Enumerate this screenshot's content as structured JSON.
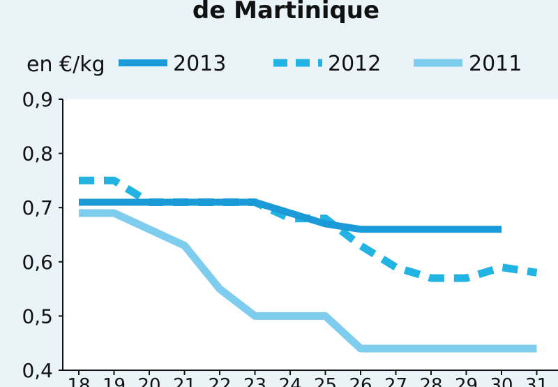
{
  "chart_data": {
    "type": "line",
    "title": "de Martinique",
    "unit_label": "en €/kg",
    "x": [
      "18",
      "19",
      "20",
      "21",
      "22",
      "23",
      "24",
      "25",
      "26",
      "27",
      "28",
      "29",
      "30",
      "31"
    ],
    "ylim": [
      0.4,
      0.9
    ],
    "yticks": [
      "0,4",
      "0,5",
      "0,6",
      "0,7",
      "0,8",
      "0,9"
    ],
    "legend_position": "top",
    "grid": false,
    "series": [
      {
        "name": "2013",
        "style": "solid",
        "color": "#1a9ad6",
        "values": [
          0.71,
          0.71,
          0.71,
          0.71,
          0.71,
          0.71,
          0.69,
          0.67,
          0.66,
          0.66,
          0.66,
          0.66,
          0.66,
          null
        ]
      },
      {
        "name": "2012",
        "style": "dashed",
        "color": "#22b3e3",
        "values": [
          0.75,
          0.75,
          0.71,
          0.71,
          0.71,
          0.71,
          0.68,
          0.68,
          0.63,
          0.59,
          0.57,
          0.57,
          0.59,
          0.58
        ]
      },
      {
        "name": "2011",
        "style": "solid-light",
        "color": "#7fcdee",
        "values": [
          0.69,
          0.69,
          0.66,
          0.63,
          0.55,
          0.5,
          0.5,
          0.5,
          0.44,
          0.44,
          0.44,
          0.44,
          0.44,
          0.44
        ]
      }
    ]
  }
}
